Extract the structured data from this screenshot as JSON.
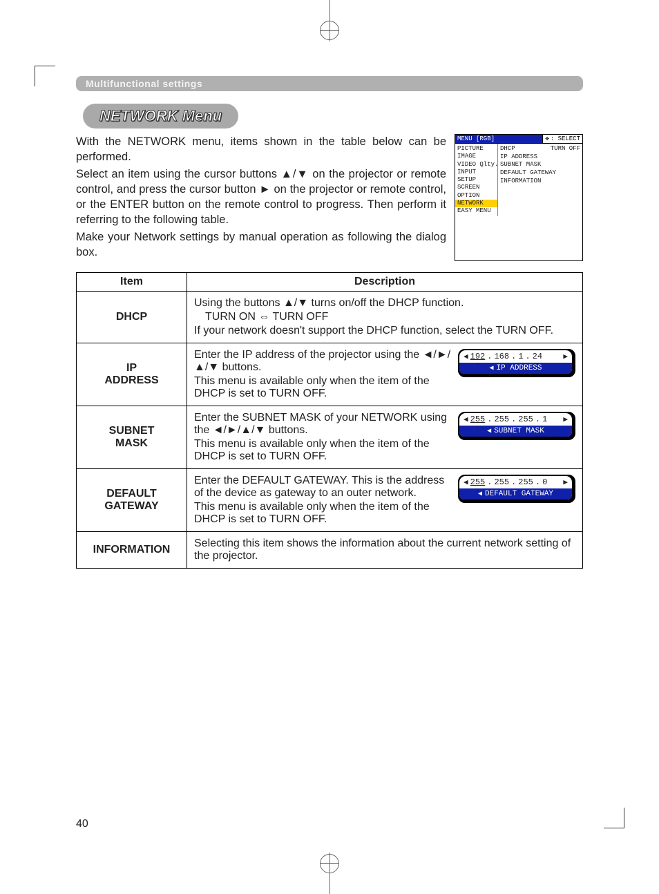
{
  "section_header": "Multifunctional settings",
  "menu_title": "NETWORK Menu",
  "intro": {
    "p1": "With the NETWORK menu, items shown in the table below can be performed.",
    "p2": "Select an item using the cursor buttons ▲/▼ on the projector or remote control, and press the cursor button ► on the projector or remote control, or the ENTER button on the remote control to progress. Then perform it referring to the following table.",
    "p3": "Make your Network settings by manual operation as following the dialog box."
  },
  "osd": {
    "header_left": "MENU [RGB]",
    "header_right": ": SELECT",
    "left_items": [
      "PICTURE",
      "IMAGE",
      "VIDEO Qlty.",
      "INPUT",
      "SETUP",
      "SCREEN",
      "OPTION",
      "NETWORK",
      "EASY MENU"
    ],
    "left_highlight_index": 7,
    "right_items": [
      {
        "l": "DHCP",
        "r": "TURN OFF"
      },
      {
        "l": "IP ADDRESS",
        "r": ""
      },
      {
        "l": "SUBNET MASK",
        "r": ""
      },
      {
        "l": "DEFAULT GATEWAY",
        "r": ""
      },
      {
        "l": "INFORMATION",
        "r": ""
      }
    ],
    "colors": {
      "header_bg": "#1020a8",
      "highlight_bg": "#ffd000"
    }
  },
  "table": {
    "head_item": "Item",
    "head_desc": "Description",
    "rows": [
      {
        "item": "DHCP",
        "desc_lines": [
          "Using the buttons ▲/▼ turns on/off the DHCP function.",
          " TURN ON ⇔ TURN OFF",
          "If your network doesn't support the DHCP function, select the TURN OFF."
        ],
        "widget": null
      },
      {
        "item": "IP ADDRESS",
        "desc_lines": [
          "Enter the IP address of the projector  using the ◄/►/▲/▼ buttons.",
          "This menu is available only when the item of the DHCP is set to TURN OFF."
        ],
        "widget": {
          "octets": [
            "192",
            "168",
            "1",
            "24"
          ],
          "sel": 0,
          "label": "IP ADDRESS"
        }
      },
      {
        "item": "SUBNET MASK",
        "desc_lines": [
          "Enter the SUBNET MASK  of your NETWORK using the ◄/►/▲/▼ buttons.",
          "This menu is available only when the item of the DHCP is set to TURN OFF."
        ],
        "widget": {
          "octets": [
            "255",
            "255",
            "255",
            "1"
          ],
          "sel": 0,
          "label": "SUBNET MASK"
        }
      },
      {
        "item": "DEFAULT GATEWAY",
        "desc_lines": [
          "Enter the DEFAULT GATEWAY. This is the address of the device as gateway to an outer network.",
          "This menu is available only when the item of the DHCP is set to TURN OFF."
        ],
        "widget": {
          "octets": [
            "255",
            "255",
            "255",
            "0"
          ],
          "sel": 0,
          "label": "DEFAULT GATEWAY"
        }
      },
      {
        "item": "INFORMATION",
        "desc_lines": [
          "Selecting this item shows the information about the current network setting of the projector."
        ],
        "widget": null
      }
    ]
  },
  "page_number": "40"
}
